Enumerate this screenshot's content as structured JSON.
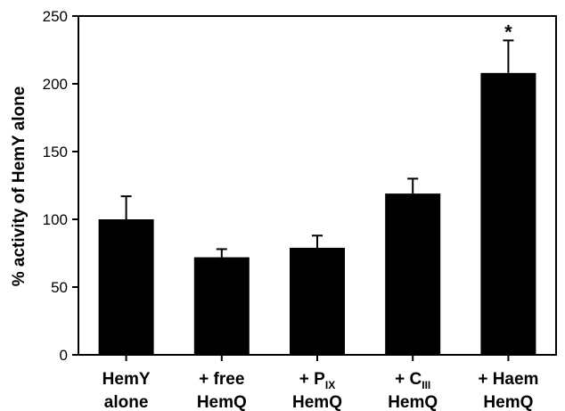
{
  "chart_data": {
    "type": "bar",
    "ylabel": "% activity of HemY alone",
    "ylim": [
      0,
      250
    ],
    "yticks": [
      0,
      50,
      100,
      150,
      200,
      250
    ],
    "grid": false,
    "bar_color": "#000000",
    "categories": [
      {
        "line1": "HemY",
        "line1_sub": "",
        "line1_suffix": "",
        "line2": "alone"
      },
      {
        "line1": "+ free",
        "line1_sub": "",
        "line1_suffix": "",
        "line2": "HemQ"
      },
      {
        "line1": "+ P",
        "line1_sub": "IX",
        "line1_suffix": "",
        "line2": "HemQ"
      },
      {
        "line1": "+ C",
        "line1_sub": "III",
        "line1_suffix": "",
        "line2": "HemQ"
      },
      {
        "line1": "+ Haem",
        "line1_sub": "",
        "line1_suffix": "",
        "line2": "HemQ"
      }
    ],
    "values": [
      100,
      72,
      79,
      119,
      208
    ],
    "errors": [
      17,
      6,
      9,
      11,
      24
    ],
    "annotations": [
      {
        "category_index": 4,
        "text": "*"
      }
    ]
  }
}
